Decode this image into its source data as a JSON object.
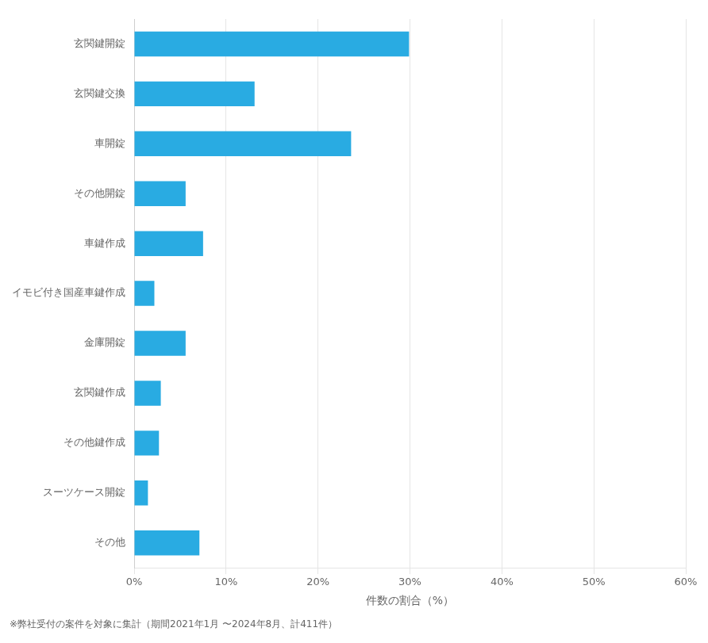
{
  "chart_data": {
    "type": "bar",
    "orientation": "horizontal",
    "categories": [
      "玄関鍵開錠",
      "玄関鍵交換",
      "車開錠",
      "その他開錠",
      "車鍵作成",
      "イモビ付き国産車鍵作成",
      "金庫開錠",
      "玄関鍵作成",
      "その他鍵作成",
      "スーツケース開錠",
      "その他"
    ],
    "values": [
      29.9,
      13.1,
      23.6,
      5.6,
      7.5,
      2.2,
      5.6,
      2.9,
      2.7,
      1.5,
      7.1
    ],
    "color": "#29ABE2",
    "xlabel": "件数の割合（%）",
    "xlim": [
      0,
      60
    ],
    "xticks": [
      {
        "value": 0,
        "label": "0%"
      },
      {
        "value": 10,
        "label": "10%"
      },
      {
        "value": 20,
        "label": "20%"
      },
      {
        "value": 30,
        "label": "30%"
      },
      {
        "value": 40,
        "label": "40%"
      },
      {
        "value": 50,
        "label": "50%"
      },
      {
        "value": 60,
        "label": "60%"
      }
    ],
    "grid": true,
    "footnote": "※弊社受付の案件を対象に集計（期間2021年1月 〜2024年8月、計411件）"
  }
}
